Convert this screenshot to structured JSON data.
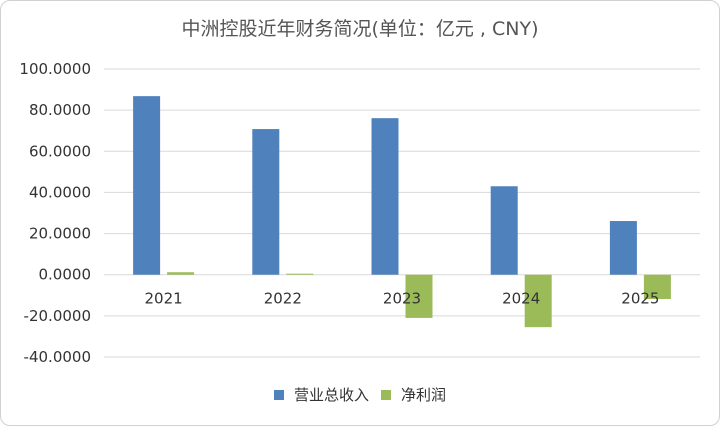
{
  "chart_data": {
    "type": "bar",
    "title": "中洲控股近年财务简况(单位：亿元 , CNY)",
    "categories": [
      "2021",
      "2022",
      "2023",
      "2024",
      "2025"
    ],
    "series": [
      {
        "name": "营业总收入",
        "values": [
          86.8,
          70.8,
          76.1,
          43.0,
          26.1
        ],
        "color": "#4f81bd"
      },
      {
        "name": "净利润",
        "values": [
          1.2,
          0.5,
          -21.0,
          -25.5,
          -11.8
        ],
        "color": "#9bbb59"
      }
    ],
    "y_ticks": [
      "100.0000",
      "80.0000",
      "60.0000",
      "40.0000",
      "20.0000",
      "0.0000",
      "-20.0000",
      "-40.0000"
    ],
    "ylim": [
      -40,
      100
    ],
    "grid": true,
    "legend_position": "bottom"
  }
}
